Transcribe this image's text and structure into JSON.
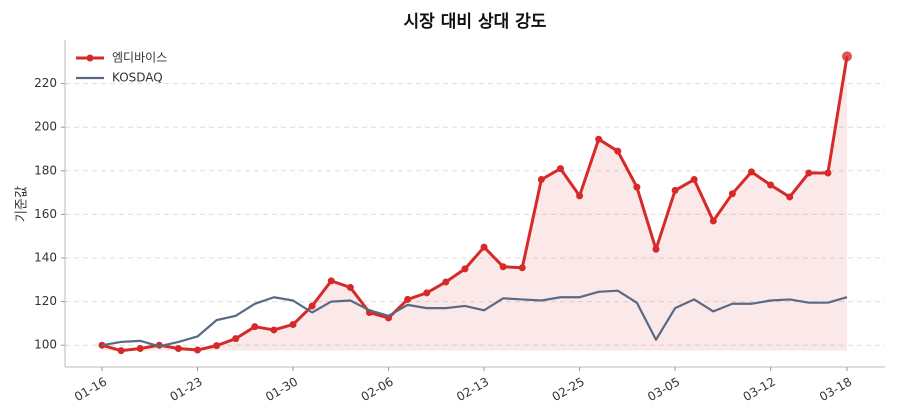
{
  "chart_data": {
    "type": "line",
    "title": "시장 대비 상대 강도",
    "ylabel": "기준값",
    "categories": [
      "01-16",
      null,
      null,
      null,
      null,
      "01-23",
      null,
      null,
      null,
      null,
      "01-30",
      null,
      null,
      null,
      null,
      "02-06",
      null,
      null,
      null,
      null,
      "02-13",
      null,
      null,
      null,
      null,
      "02-25",
      null,
      null,
      null,
      null,
      "03-05",
      null,
      null,
      null,
      null,
      "03-12",
      null,
      null,
      null,
      "03-18"
    ],
    "series": [
      {
        "name": "엠디바이스",
        "color": "#d62a2a",
        "fill": true,
        "values": [
          100,
          97.5,
          98.5,
          100,
          98.5,
          97.8,
          99.8,
          103,
          108.5,
          107,
          109.5,
          118,
          129.5,
          126.5,
          115,
          112.5,
          121,
          124,
          129,
          135,
          145,
          136,
          135.5,
          176,
          181,
          168.5,
          194.5,
          189,
          172.5,
          144,
          171,
          176,
          157,
          169.5,
          179.5,
          173.5,
          168,
          179,
          179,
          232.5
        ]
      },
      {
        "name": "KOSDAQ",
        "color": "#5a6a85",
        "values": [
          100,
          101.5,
          102,
          99.5,
          101.5,
          104,
          111.5,
          113.5,
          119,
          122,
          120.5,
          115,
          120,
          120.5,
          116,
          113.5,
          118.5,
          117,
          117,
          118,
          116,
          121.5,
          121,
          120.5,
          122,
          122,
          124.5,
          125,
          119.5,
          102.5,
          117,
          121,
          115.5,
          119,
          119,
          120.5,
          121,
          119.5,
          119.5,
          122
        ]
      }
    ],
    "ylim": [
      90,
      240
    ],
    "yticks": [
      100,
      120,
      140,
      160,
      180,
      200,
      220
    ],
    "grid": true,
    "legend": "upper left"
  }
}
